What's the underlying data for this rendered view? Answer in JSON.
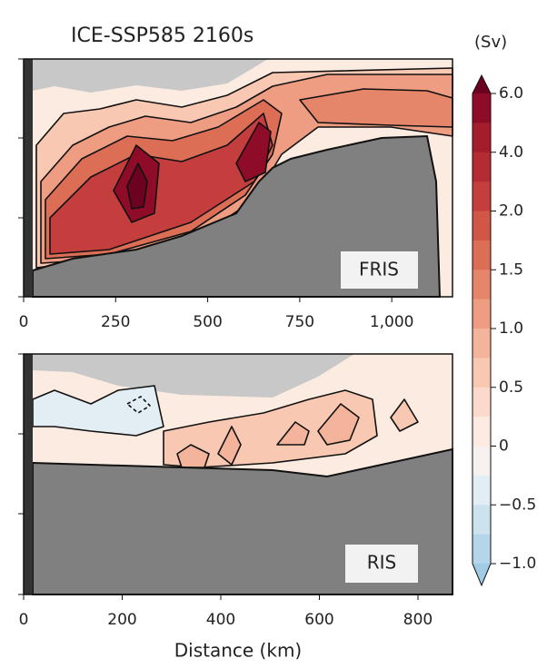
{
  "title": "ICE-SSP585 2160s",
  "xlabel": "Distance (km)",
  "colorbar": {
    "label": "(Sv)",
    "ticks": [
      {
        "value": 6,
        "label": "6.0"
      },
      {
        "value": 4,
        "label": "4.0"
      },
      {
        "value": 2,
        "label": "2.0"
      },
      {
        "value": 1.5,
        "label": "1.5"
      },
      {
        "value": 1,
        "label": "1.0"
      },
      {
        "value": 0.5,
        "label": "0.5"
      },
      0,
      {
        "value": -0.5,
        "label": "−0.5"
      },
      {
        "value": -1,
        "label": "−1.0"
      }
    ],
    "colors": [
      "#6d0220",
      "#8e0c27",
      "#a51c2c",
      "#b52b33",
      "#c43e3d",
      "#d05648",
      "#dc6e56",
      "#e5856a",
      "#ee9c82",
      "#f4b49b",
      "#f8c8b2",
      "#fbdacb",
      "#fcebe1",
      "#f7f2ef",
      "#e2edf4",
      "#cde2ef",
      "#b5d6ea",
      "#a0cbe4"
    ]
  },
  "chart_data": [
    {
      "type": "contour",
      "label": "FRIS",
      "xlim": [
        0,
        1165
      ],
      "xticks": [
        0,
        250,
        500,
        750,
        {
          "value": 1000,
          "label": "1,000"
        }
      ]
    },
    {
      "type": "contour",
      "label": "RIS",
      "xlim": [
        0,
        870
      ],
      "xticks": [
        0,
        200,
        400,
        600,
        800
      ]
    }
  ]
}
